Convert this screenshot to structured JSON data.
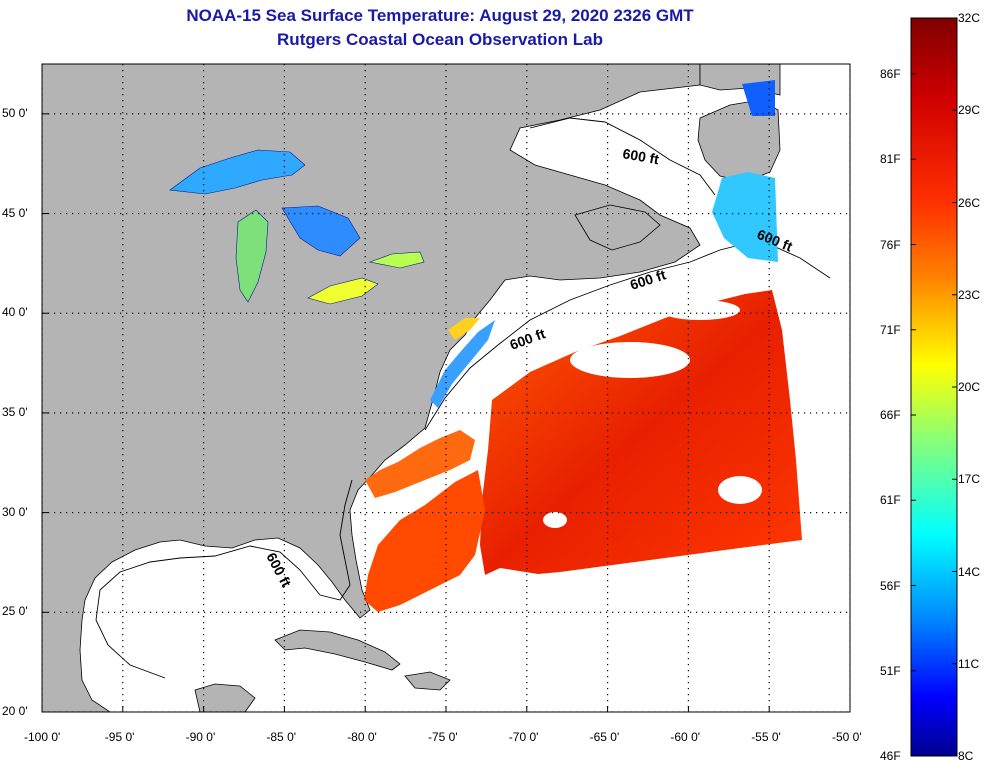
{
  "header": {
    "title": "NOAA-15 Sea Surface Temperature:  August 29, 2020 2326 GMT",
    "subtitle": "Rutgers Coastal Ocean Observation Lab"
  },
  "map": {
    "lon_range": [
      -100,
      -50
    ],
    "lat_range": [
      20,
      52.5
    ],
    "lon_ticks": [
      "-100 0'",
      "-95 0'",
      "-90 0'",
      "-85 0'",
      "-80 0'",
      "-75 0'",
      "-70 0'",
      "-65 0'",
      "-60 0'",
      "-55 0'",
      "-50 0'"
    ],
    "lat_ticks": [
      "50 0'",
      "45 0'",
      "40 0'",
      "35 0'",
      "30 0'",
      "25 0'",
      "20 0'"
    ],
    "contour_label": "600 ft",
    "colors": {
      "land": "#b4b4b4",
      "water": "#ffffff",
      "grid": "#000000"
    }
  },
  "colorbar": {
    "fahrenheit_labels": [
      "86F",
      "81F",
      "76F",
      "71F",
      "66F",
      "61F",
      "56F",
      "51F",
      "46F"
    ],
    "celsius_labels": [
      "32C",
      "29C",
      "26C",
      "23C",
      "20C",
      "17C",
      "14C",
      "11C",
      "8C"
    ],
    "range_c": [
      8,
      32
    ],
    "colormap": [
      "#7f0000",
      "#ff0000",
      "#ff8000",
      "#ffff00",
      "#80ff80",
      "#00ffff",
      "#0080ff",
      "#0000ff",
      "#00008f"
    ]
  }
}
